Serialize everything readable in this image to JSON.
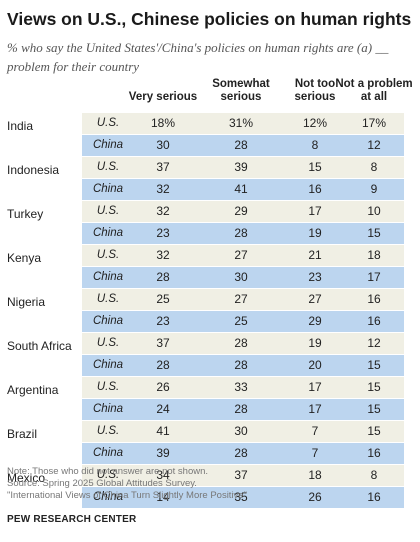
{
  "title": "Views on U.S., Chinese policies on human rights",
  "subtitle": "% who say the United States'/China's policies on human rights are (a) __ problem for their country",
  "notes": [
    "Note: Those who did not answer are not shown.",
    "Source: Spring 2025 Global Attitudes Survey.",
    "\"International Views of China Turn Slightly More Positive\""
  ],
  "brand": "PEW RESEARCH CENTER",
  "colors": {
    "us_row": "#f0efe4",
    "china_row": "#bcd5ef"
  },
  "chart_data": {
    "type": "table",
    "columns": [
      "Very serious",
      "Somewhat serious",
      "Not too serious",
      "Not a problem at all"
    ],
    "series_labels": [
      "U.S.",
      "China"
    ],
    "rows": [
      {
        "country": "India",
        "us": [
          "18%",
          "31%",
          "12%",
          "17%"
        ],
        "china": [
          "30",
          "28",
          "8",
          "12"
        ]
      },
      {
        "country": "Indonesia",
        "us": [
          "37",
          "39",
          "15",
          "8"
        ],
        "china": [
          "32",
          "41",
          "16",
          "9"
        ]
      },
      {
        "country": "Turkey",
        "us": [
          "32",
          "29",
          "17",
          "10"
        ],
        "china": [
          "23",
          "28",
          "19",
          "15"
        ]
      },
      {
        "country": "Kenya",
        "us": [
          "32",
          "27",
          "21",
          "18"
        ],
        "china": [
          "28",
          "30",
          "23",
          "17"
        ]
      },
      {
        "country": "Nigeria",
        "us": [
          "25",
          "27",
          "27",
          "16"
        ],
        "china": [
          "23",
          "25",
          "29",
          "16"
        ]
      },
      {
        "country": "South Africa",
        "us": [
          "37",
          "28",
          "19",
          "12"
        ],
        "china": [
          "28",
          "28",
          "20",
          "15"
        ]
      },
      {
        "country": "Argentina",
        "us": [
          "26",
          "33",
          "17",
          "15"
        ],
        "china": [
          "24",
          "28",
          "17",
          "15"
        ]
      },
      {
        "country": "Brazil",
        "us": [
          "41",
          "30",
          "7",
          "15"
        ],
        "china": [
          "39",
          "28",
          "7",
          "16"
        ]
      },
      {
        "country": "Mexico",
        "us": [
          "34",
          "37",
          "18",
          "8"
        ],
        "china": [
          "14",
          "35",
          "26",
          "16"
        ]
      }
    ]
  }
}
